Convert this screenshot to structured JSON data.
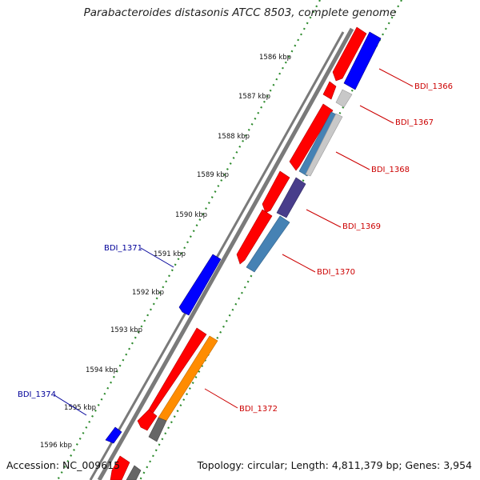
{
  "title": "Parabacteroides distasonis ATCC 8503, complete genome",
  "footer": {
    "accession": "Accession: NC_009615",
    "summary": "Topology: circular; Length: 4,811,379 bp; Genes: 3,954"
  },
  "colors": {
    "forward_label": "#cc0000",
    "reverse_label": "#000099",
    "tick_dots": "#2e8b2e",
    "backbone": "#7a7a7a"
  },
  "kbp_ticks": [
    "1586 kbp",
    "1587 kbp",
    "1588 kbp",
    "1589 kbp",
    "1590 kbp",
    "1591 kbp",
    "1592 kbp",
    "1593 kbp",
    "1594 kbp",
    "1595 kbp",
    "1596 kbp"
  ],
  "genes": [
    {
      "label": "BDI_1366",
      "strand": "forward"
    },
    {
      "label": "BDI_1367",
      "strand": "forward"
    },
    {
      "label": "BDI_1368",
      "strand": "forward"
    },
    {
      "label": "BDI_1369",
      "strand": "forward"
    },
    {
      "label": "BDI_1370",
      "strand": "forward"
    },
    {
      "label": "BDI_1371",
      "strand": "reverse"
    },
    {
      "label": "BDI_1372",
      "strand": "forward"
    },
    {
      "label": "BDI_1374",
      "strand": "reverse"
    }
  ]
}
